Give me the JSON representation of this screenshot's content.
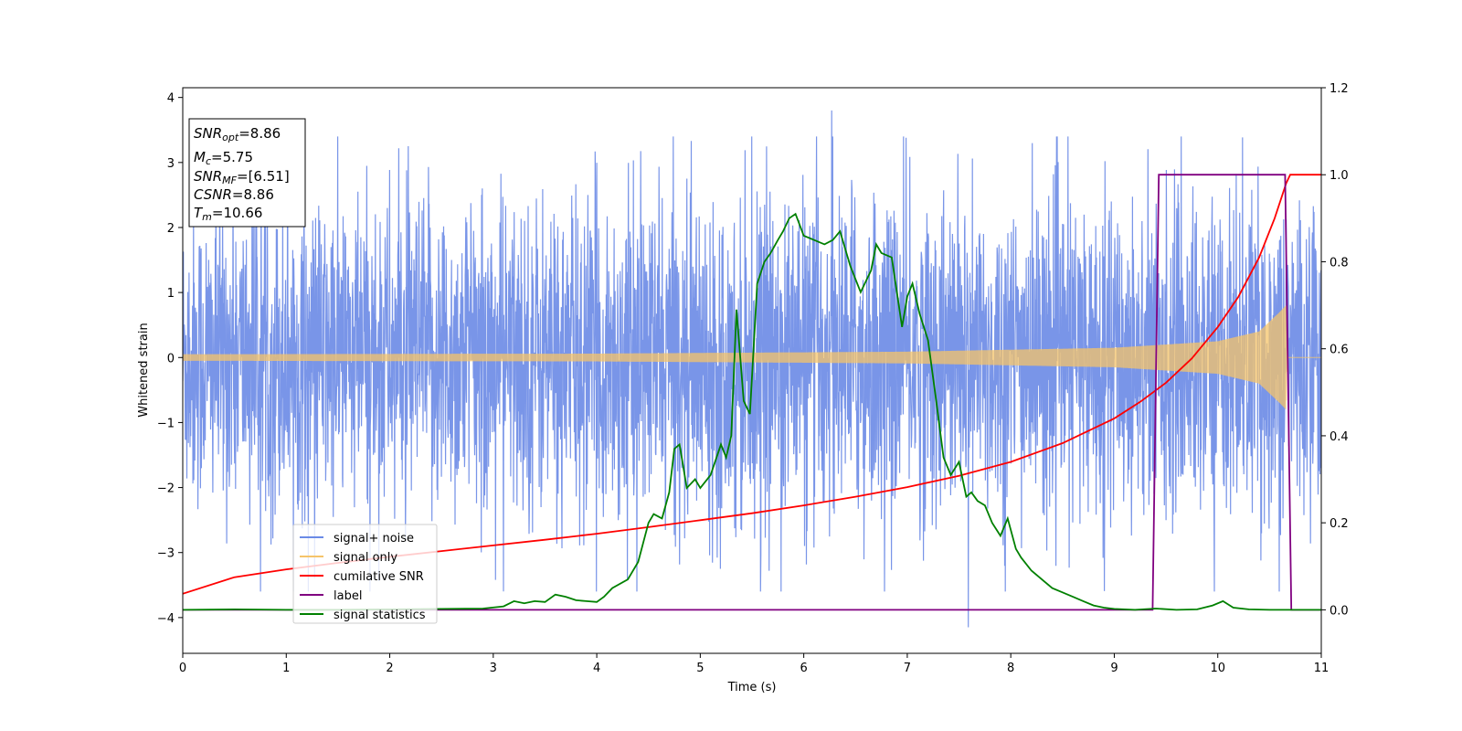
{
  "chart_data": {
    "type": "line",
    "xlabel": "Time (s)",
    "ylabel": "Whitened strain",
    "xlim": [
      0,
      11
    ],
    "ylim_left": [
      -4.55,
      4.15
    ],
    "ylim_right": [
      -0.1,
      1.2
    ],
    "x_ticks": [
      0,
      1,
      2,
      3,
      4,
      5,
      6,
      7,
      8,
      9,
      10,
      11
    ],
    "y_ticks_left": [
      -4,
      -3,
      -2,
      -1,
      0,
      1,
      2,
      3,
      4
    ],
    "y_ticks_left_labels": [
      "−4",
      "−3",
      "−2",
      "−1",
      "0",
      "1",
      "2",
      "3",
      "4"
    ],
    "y_ticks_right": [
      0.0,
      0.2,
      0.4,
      0.6,
      0.8,
      1.0,
      1.2
    ],
    "y_ticks_right_labels": [
      "0.0",
      "0.2",
      "0.4",
      "0.6",
      "0.8",
      "1.0",
      "1.2"
    ],
    "legend_position": "lower-left",
    "info_box": {
      "snr_opt_base": "SNR",
      "snr_opt_sub": "opt",
      "snr_opt_value": "=8.86",
      "mc_base": "M",
      "mc_sub": "c",
      "mc_value": "=5.75",
      "snr_mf_base": "SNR",
      "snr_mf_sub": "MF",
      "snr_mf_value": "=[6.51]",
      "csnr_base": "CSNR",
      "csnr_value": "=8.86",
      "tm_base": "T",
      "tm_sub": "m",
      "tm_value": "=10.66"
    },
    "series": [
      {
        "name": "signal+ noise",
        "axis": "left",
        "color": "#6a8ae6",
        "kind": "noise",
        "envelope": [
          [
            0,
            1.5
          ],
          [
            2,
            1.55
          ],
          [
            4,
            1.55
          ],
          [
            6,
            1.6
          ],
          [
            8,
            1.55
          ],
          [
            10,
            1.55
          ],
          [
            11,
            1.55
          ]
        ],
        "peak_max": 3.8,
        "peak_min": -4.15
      },
      {
        "name": "signal only",
        "axis": "left",
        "color": "#f5c46a",
        "kind": "chirp",
        "envelope": [
          [
            0,
            0.05
          ],
          [
            4,
            0.06
          ],
          [
            7,
            0.09
          ],
          [
            9,
            0.15
          ],
          [
            10,
            0.25
          ],
          [
            10.4,
            0.4
          ],
          [
            10.6,
            0.7
          ],
          [
            10.66,
            0.8
          ],
          [
            10.67,
            0.0
          ],
          [
            11,
            0.0
          ]
        ]
      },
      {
        "name": "cumilative SNR",
        "axis": "right",
        "color": "#ff0000",
        "kind": "line",
        "x": [
          0,
          0.5,
          1,
          1.5,
          2,
          2.5,
          3,
          3.5,
          4,
          4.5,
          5,
          5.5,
          6,
          6.5,
          7,
          7.5,
          8,
          8.5,
          9,
          9.25,
          9.5,
          9.75,
          10,
          10.2,
          10.4,
          10.55,
          10.66,
          10.7,
          11
        ],
        "y": [
          0.037,
          0.075,
          0.093,
          0.108,
          0.122,
          0.135,
          0.148,
          0.161,
          0.175,
          0.19,
          0.206,
          0.222,
          0.24,
          0.26,
          0.282,
          0.308,
          0.34,
          0.383,
          0.44,
          0.478,
          0.522,
          0.578,
          0.65,
          0.72,
          0.81,
          0.9,
          0.98,
          1.0,
          1.0
        ]
      },
      {
        "name": "label",
        "axis": "right",
        "color": "#800080",
        "kind": "line",
        "x": [
          0,
          9.37,
          9.43,
          10.65,
          10.71,
          11
        ],
        "y": [
          0,
          0,
          1,
          1,
          0,
          0
        ]
      },
      {
        "name": "signal statistics",
        "axis": "right",
        "color": "#008000",
        "kind": "line",
        "x": [
          0,
          0.5,
          1,
          1.5,
          2,
          2.5,
          2.9,
          3.1,
          3.2,
          3.3,
          3.4,
          3.5,
          3.6,
          3.7,
          3.8,
          3.9,
          4.0,
          4.07,
          4.15,
          4.3,
          4.4,
          4.5,
          4.55,
          4.63,
          4.7,
          4.75,
          4.8,
          4.87,
          4.95,
          5.0,
          5.1,
          5.2,
          5.25,
          5.3,
          5.35,
          5.42,
          5.48,
          5.55,
          5.62,
          5.68,
          5.75,
          5.8,
          5.86,
          5.92,
          6.0,
          6.1,
          6.2,
          6.28,
          6.35,
          6.45,
          6.55,
          6.65,
          6.7,
          6.75,
          6.85,
          6.95,
          7.0,
          7.05,
          7.12,
          7.2,
          7.28,
          7.35,
          7.42,
          7.5,
          7.57,
          7.62,
          7.68,
          7.75,
          7.82,
          7.9,
          7.97,
          8.05,
          8.1,
          8.2,
          8.3,
          8.4,
          8.5,
          8.6,
          8.7,
          8.8,
          8.9,
          9.0,
          9.2,
          9.4,
          9.6,
          9.8,
          9.95,
          10.05,
          10.15,
          10.3,
          10.5,
          11
        ],
        "y": [
          0.0,
          0.001,
          0.0,
          0.0,
          0.001,
          0.002,
          0.003,
          0.008,
          0.02,
          0.015,
          0.02,
          0.018,
          0.035,
          0.03,
          0.022,
          0.02,
          0.018,
          0.03,
          0.05,
          0.07,
          0.11,
          0.2,
          0.22,
          0.21,
          0.27,
          0.37,
          0.38,
          0.28,
          0.3,
          0.28,
          0.31,
          0.38,
          0.35,
          0.4,
          0.69,
          0.48,
          0.45,
          0.75,
          0.8,
          0.82,
          0.85,
          0.87,
          0.9,
          0.91,
          0.86,
          0.85,
          0.84,
          0.85,
          0.87,
          0.79,
          0.73,
          0.78,
          0.84,
          0.82,
          0.81,
          0.65,
          0.72,
          0.75,
          0.68,
          0.62,
          0.48,
          0.35,
          0.31,
          0.34,
          0.26,
          0.27,
          0.25,
          0.24,
          0.2,
          0.17,
          0.21,
          0.14,
          0.12,
          0.09,
          0.07,
          0.05,
          0.04,
          0.03,
          0.02,
          0.01,
          0.005,
          0.002,
          0.0,
          0.003,
          0.0,
          0.001,
          0.01,
          0.02,
          0.005,
          0.001,
          0.0,
          0.0
        ]
      }
    ]
  }
}
